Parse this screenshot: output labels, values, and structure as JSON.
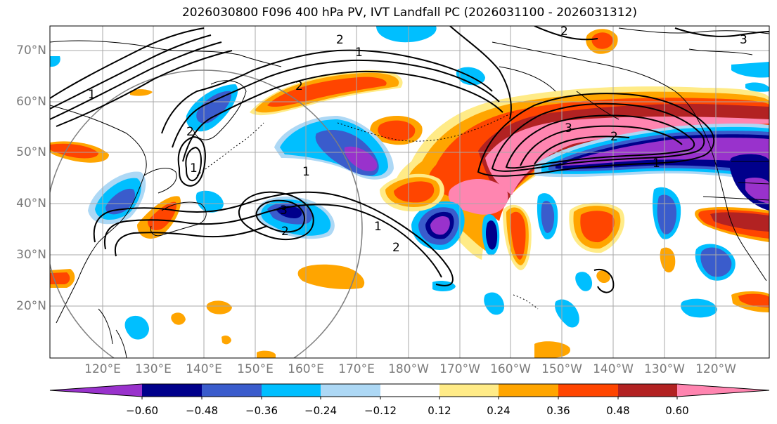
{
  "title": "2026030800 F096 400 hPa PV, IVT Landfall PC (2026031100 - 2026031312)",
  "lat_labels": [
    "70°N",
    "60°N",
    "50°N",
    "40°N",
    "30°N",
    "20°N"
  ],
  "lon_labels": [
    "120°E",
    "130°E",
    "140°E",
    "150°E",
    "160°E",
    "170°E",
    "180°W",
    "170°W",
    "160°W",
    "150°W",
    "140°W",
    "130°W",
    "120°W"
  ],
  "colorbar": {
    "colors": [
      "#9932cc",
      "#00008b",
      "#3a5ccc",
      "#00bfff",
      "#add8f5",
      "#ffffff",
      "#ffeb87",
      "#ffa500",
      "#ff4500",
      "#b22222",
      "#ff85b0"
    ],
    "tick_labels": [
      "−0.60",
      "−0.48",
      "−0.36",
      "−0.24",
      "−0.12",
      "0.12",
      "0.24",
      "0.36",
      "0.48",
      "0.60"
    ]
  },
  "contour_labels": [
    "2",
    "1",
    "2",
    "3",
    "1",
    "2",
    "1",
    "3",
    "2",
    "2",
    "1",
    "3",
    "1",
    "2",
    "2",
    "1"
  ]
}
